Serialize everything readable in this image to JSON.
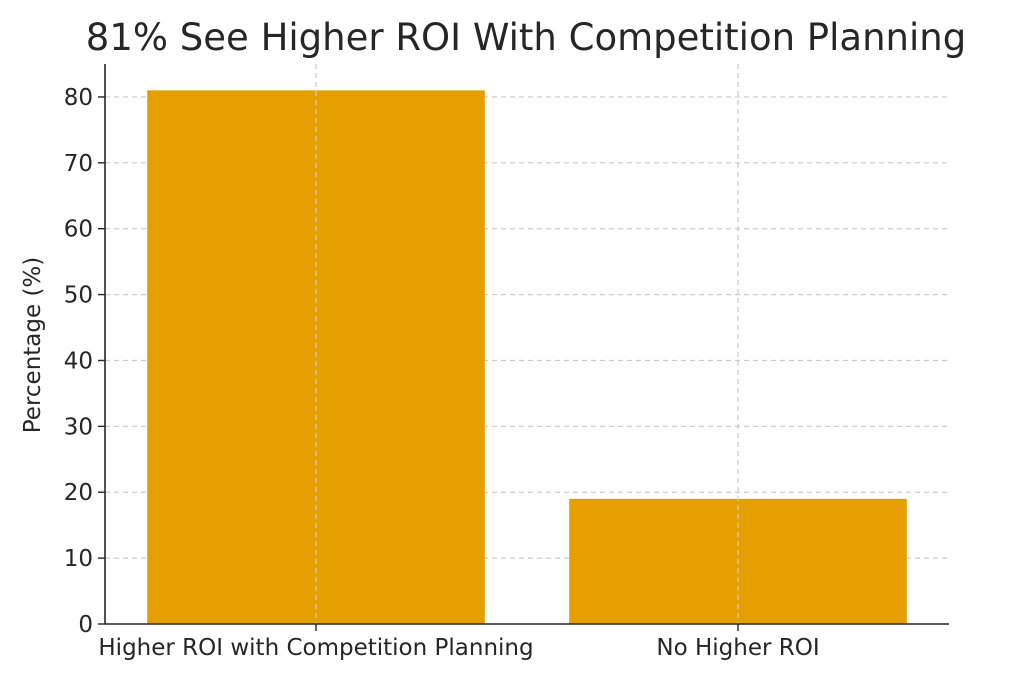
{
  "chart_data": {
    "type": "bar",
    "title": "81% See Higher ROI With Competition Planning",
    "xlabel": "",
    "ylabel": "Percentage (%)",
    "categories": [
      "Higher ROI with Competition Planning",
      "No Higher ROI"
    ],
    "values": [
      81,
      19
    ],
    "ylim": [
      0,
      85
    ],
    "yticks": [
      0,
      10,
      20,
      30,
      40,
      50,
      60,
      70,
      80
    ],
    "grid": true,
    "legend": "none",
    "bar_color": "#E5A000",
    "grid_color": "#cccccc",
    "axis_color": "#262626"
  }
}
